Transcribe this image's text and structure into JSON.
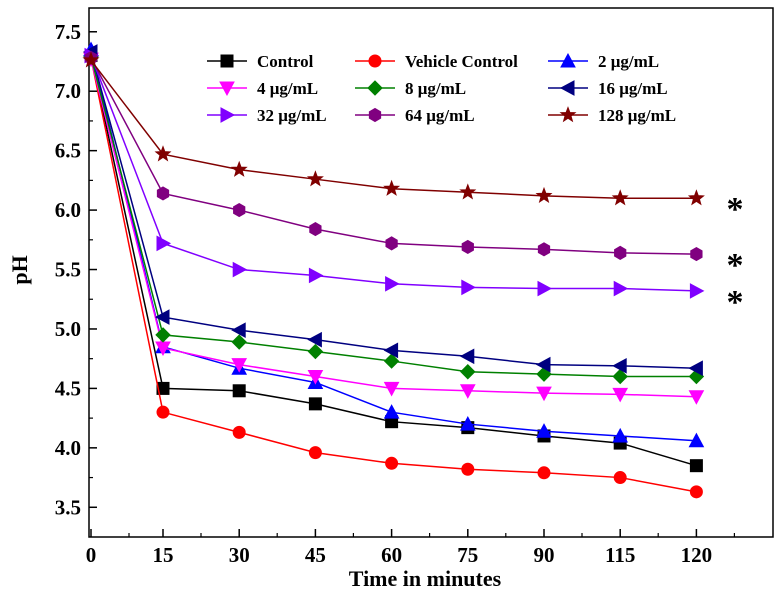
{
  "chart_data": {
    "type": "line",
    "title": "",
    "xlabel": "Time in minutes",
    "ylabel": "pH",
    "x": [
      0,
      15,
      30,
      45,
      60,
      75,
      90,
      115,
      120
    ],
    "x_tick_labels": [
      "0",
      "15",
      "30",
      "45",
      "60",
      "75",
      "90",
      "115",
      "120"
    ],
    "y_ticks": [
      3.5,
      4.0,
      4.5,
      5.0,
      5.5,
      6.0,
      6.5,
      7.0,
      7.5
    ],
    "y_tick_labels": [
      "3.5",
      "4.0",
      "4.5",
      "5.0",
      "5.5",
      "6.0",
      "6.5",
      "7.0",
      "7.5"
    ],
    "ylim": [
      3.25,
      7.7
    ],
    "grid": false,
    "legend_position": "top",
    "series": [
      {
        "name": "Control",
        "color": "#000000",
        "marker": "square",
        "values": [
          7.3,
          4.5,
          4.48,
          4.37,
          4.22,
          4.17,
          4.1,
          4.04,
          3.85
        ]
      },
      {
        "name": "Vehicle Control",
        "color": "#ff0000",
        "marker": "circle",
        "values": [
          7.28,
          4.3,
          4.13,
          3.96,
          3.87,
          3.82,
          3.79,
          3.75,
          3.63
        ]
      },
      {
        "name": "2 μg/mL",
        "color": "#0000ff",
        "marker": "triangle-up",
        "values": [
          7.35,
          4.85,
          4.67,
          4.55,
          4.3,
          4.2,
          4.14,
          4.1,
          4.06
        ]
      },
      {
        "name": "4 μg/mL",
        "color": "#ff00ff",
        "marker": "triangle-down",
        "values": [
          7.27,
          4.84,
          4.7,
          4.6,
          4.5,
          4.48,
          4.46,
          4.45,
          4.43
        ]
      },
      {
        "name": "8 μg/mL",
        "color": "#008000",
        "marker": "diamond",
        "values": [
          7.29,
          4.95,
          4.89,
          4.81,
          4.73,
          4.64,
          4.62,
          4.6,
          4.6
        ]
      },
      {
        "name": "16 μg/mL",
        "color": "#000080",
        "marker": "triangle-left",
        "values": [
          7.33,
          5.1,
          4.99,
          4.91,
          4.82,
          4.77,
          4.7,
          4.69,
          4.67
        ]
      },
      {
        "name": "32 μg/mL",
        "color": "#8000ff",
        "marker": "triangle-right",
        "values": [
          7.3,
          5.72,
          5.5,
          5.45,
          5.38,
          5.35,
          5.34,
          5.34,
          5.32
        ]
      },
      {
        "name": "64 μg/mL",
        "color": "#800080",
        "marker": "hexagon",
        "values": [
          7.28,
          6.14,
          6.0,
          5.84,
          5.72,
          5.69,
          5.67,
          5.64,
          5.63
        ]
      },
      {
        "name": "128 μg/mL",
        "color": "#800000",
        "marker": "star",
        "values": [
          7.26,
          6.47,
          6.34,
          6.26,
          6.18,
          6.15,
          6.12,
          6.1,
          6.1
        ]
      }
    ],
    "annotations": [
      {
        "text": "*",
        "series": "128 μg/mL"
      },
      {
        "text": "*",
        "series": "64 μg/mL"
      },
      {
        "text": "*",
        "series": "32 μg/mL"
      }
    ]
  }
}
